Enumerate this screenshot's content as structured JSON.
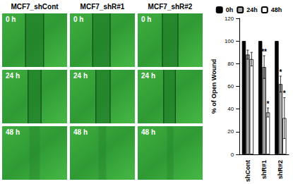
{
  "figure": {
    "columns": [
      "MCF7_shCont",
      "MCF7_shR#1",
      "MCF7_shR#2"
    ],
    "rows": [
      "0 h",
      "24 h",
      "48 h"
    ]
  },
  "chart_data": {
    "type": "bar",
    "y_label": "% of Open Wound",
    "categories": [
      "shCont",
      "shR#1",
      "shR#2"
    ],
    "series": [
      {
        "name": "0h",
        "color": "#000000",
        "values": [
          100,
          100,
          100
        ],
        "errors": [
          0,
          0,
          0
        ]
      },
      {
        "name": "24h",
        "color": "#a6a6a6",
        "values": [
          88,
          77,
          62
        ],
        "errors": [
          4,
          10,
          7
        ],
        "annotations": [
          null,
          "**",
          "*"
        ]
      },
      {
        "name": "48h",
        "color": "#ffffff",
        "values": [
          84,
          37,
          32
        ],
        "errors": [
          6,
          4,
          18
        ],
        "annotations": [
          null,
          "*",
          "*"
        ]
      }
    ],
    "ylim": [
      0,
      120
    ],
    "yticks": [
      0,
      20,
      40,
      60,
      80,
      100,
      120
    ],
    "grid": false,
    "legend": "top"
  }
}
